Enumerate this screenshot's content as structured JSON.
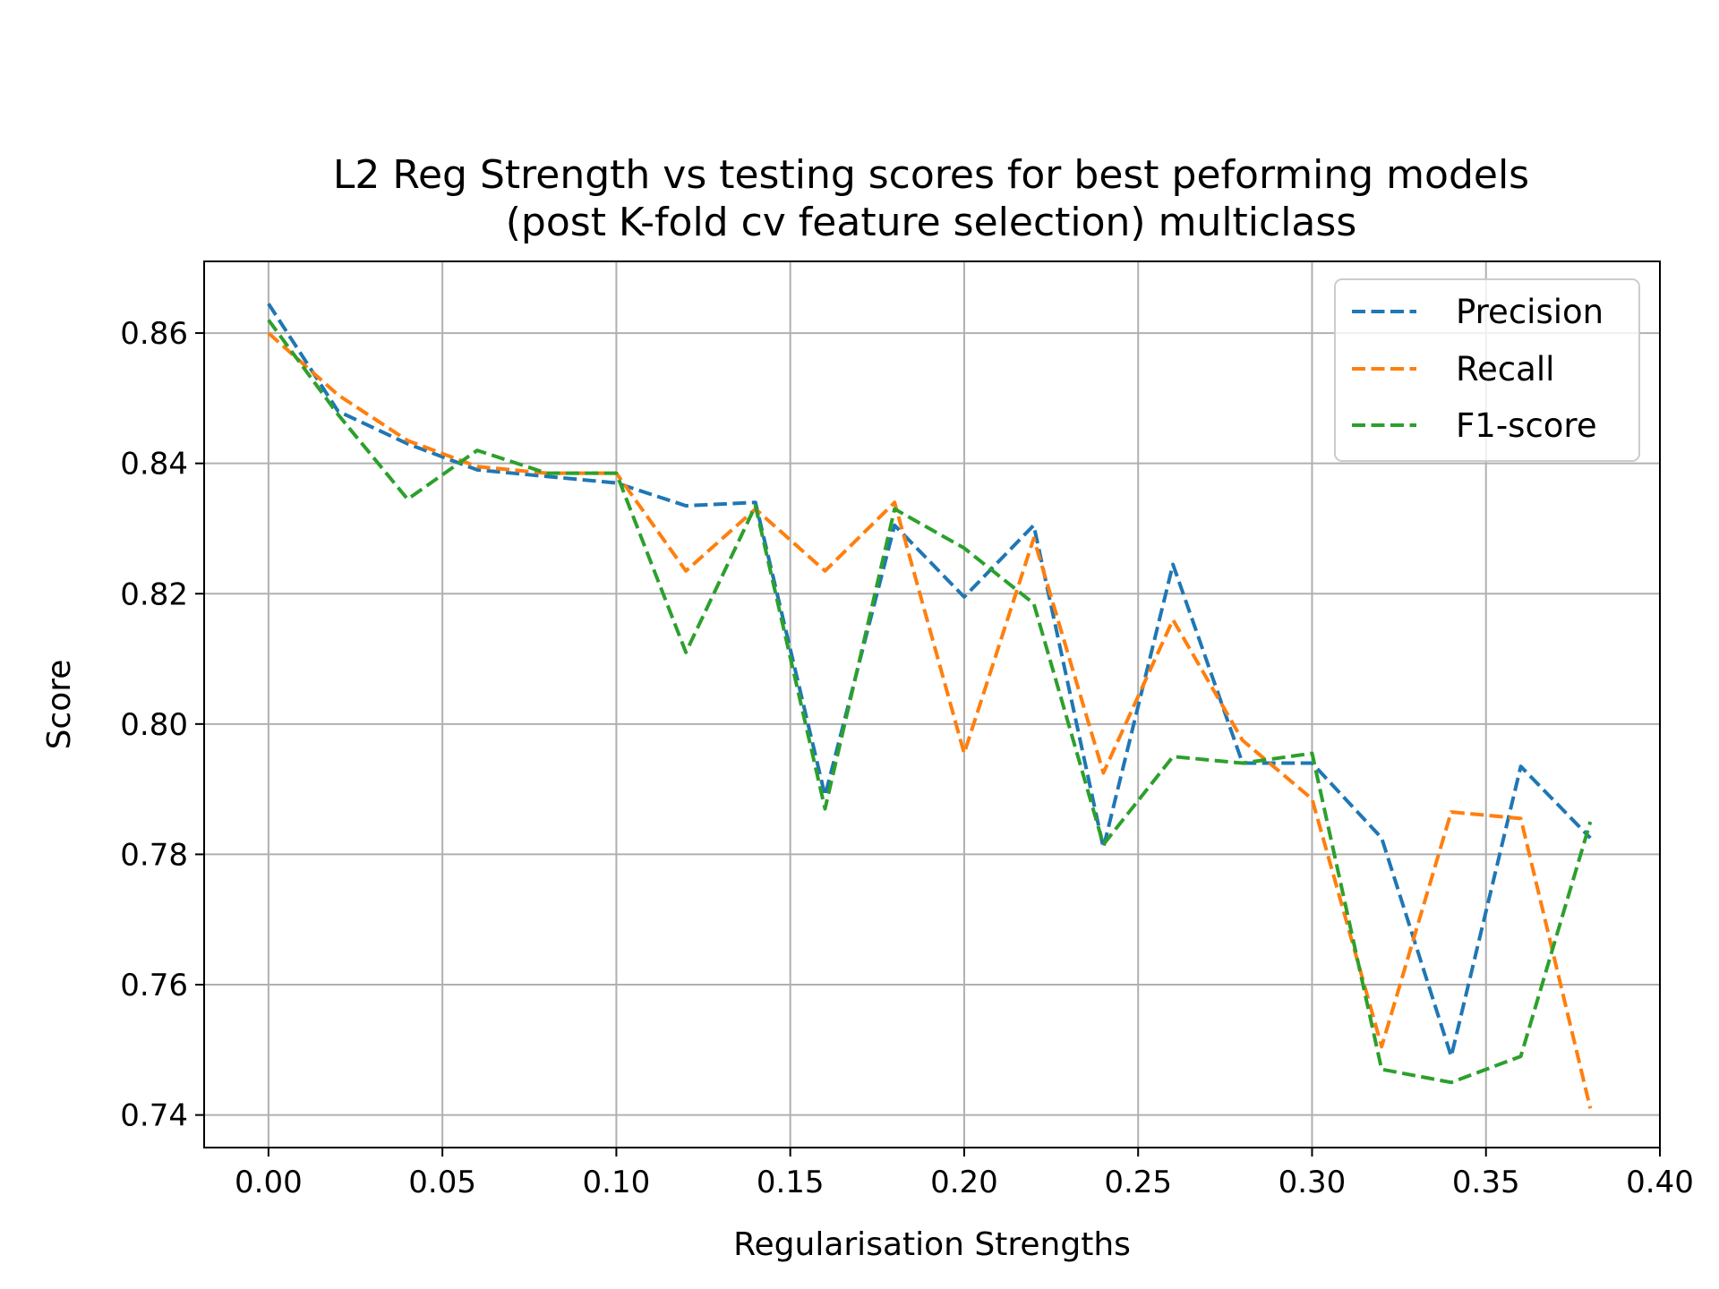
{
  "chart_data": {
    "type": "line",
    "title_lines": [
      "L2 Reg Strength vs testing scores for best peforming models",
      "(post K-fold cv feature selection) multiclass"
    ],
    "xlabel": "Regularisation Strengths",
    "ylabel": "Score",
    "xlim": [
      -0.0185,
      0.4
    ],
    "ylim": [
      0.735,
      0.871
    ],
    "xticks": [
      0.0,
      0.05,
      0.1,
      0.15,
      0.2,
      0.25,
      0.3,
      0.35,
      0.4
    ],
    "xtick_labels": [
      "0.00",
      "0.05",
      "0.10",
      "0.15",
      "0.20",
      "0.25",
      "0.30",
      "0.35",
      "0.40"
    ],
    "yticks": [
      0.74,
      0.76,
      0.78,
      0.8,
      0.82,
      0.84,
      0.86
    ],
    "ytick_labels": [
      "0.74",
      "0.76",
      "0.78",
      "0.80",
      "0.82",
      "0.84",
      "0.86"
    ],
    "grid": true,
    "legend_position": "top-right",
    "x": [
      0.0,
      0.02,
      0.04,
      0.06,
      0.08,
      0.1,
      0.12,
      0.14,
      0.16,
      0.18,
      0.2,
      0.22,
      0.24,
      0.26,
      0.28,
      0.3,
      0.32,
      0.34,
      0.36,
      0.38
    ],
    "series": [
      {
        "name": "Precision",
        "color": "#1f77b4",
        "values": [
          0.8645,
          0.848,
          0.843,
          0.839,
          0.838,
          0.837,
          0.8335,
          0.834,
          0.789,
          0.8305,
          0.8195,
          0.8305,
          0.781,
          0.8245,
          0.794,
          0.794,
          0.7825,
          0.749,
          0.7935,
          0.7825
        ]
      },
      {
        "name": "Recall",
        "color": "#ff7f0e",
        "values": [
          0.86,
          0.8505,
          0.8435,
          0.8395,
          0.8385,
          0.8385,
          0.8235,
          0.833,
          0.8235,
          0.834,
          0.7955,
          0.8285,
          0.7925,
          0.816,
          0.7975,
          0.7885,
          0.7505,
          0.7865,
          0.7855,
          0.741
        ]
      },
      {
        "name": "F1-score",
        "color": "#2ca02c",
        "values": [
          0.862,
          0.8475,
          0.8345,
          0.842,
          0.8385,
          0.8385,
          0.811,
          0.8335,
          0.787,
          0.833,
          0.827,
          0.8185,
          0.7815,
          0.795,
          0.794,
          0.7955,
          0.747,
          0.745,
          0.749,
          0.785
        ]
      }
    ]
  }
}
